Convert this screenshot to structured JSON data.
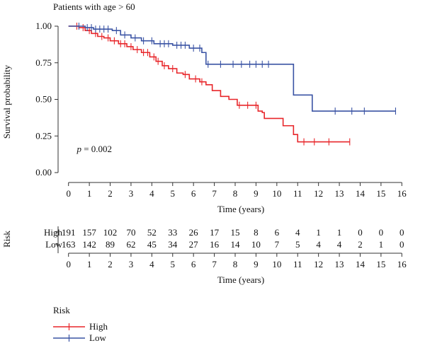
{
  "chart_data": {
    "type": "line",
    "subtype": "kaplan-meier",
    "title": "Patients with age > 60",
    "xlabel": "Time (years)",
    "ylabel": "Survival probability",
    "xlim": [
      -0.5,
      16.5
    ],
    "ylim": [
      0,
      1
    ],
    "x_ticks": [
      0,
      1,
      2,
      3,
      4,
      5,
      6,
      7,
      8,
      9,
      10,
      11,
      12,
      13,
      14,
      15,
      16
    ],
    "y_ticks": [
      "0.00",
      "0.25",
      "0.50",
      "0.75",
      "1.00"
    ],
    "grid": false,
    "annotation": {
      "p_symbol": "p",
      "p_value": " = 0.002",
      "x": 0.4,
      "y": 0.16
    },
    "series": [
      {
        "name": "High",
        "color": "#e8262a",
        "x": [
          0,
          0.5,
          0.8,
          1.1,
          1.4,
          1.7,
          2.0,
          2.4,
          2.8,
          3.1,
          3.5,
          3.9,
          4.2,
          4.5,
          4.8,
          5.2,
          5.5,
          5.8,
          6.3,
          6.6,
          6.9,
          7.3,
          7.7,
          8.1,
          9.1,
          9.3,
          9.4,
          10.3,
          10.8,
          11.0,
          13.5
        ],
        "y": [
          1.0,
          0.99,
          0.97,
          0.95,
          0.93,
          0.92,
          0.9,
          0.88,
          0.86,
          0.84,
          0.82,
          0.79,
          0.76,
          0.73,
          0.71,
          0.68,
          0.67,
          0.64,
          0.62,
          0.6,
          0.56,
          0.52,
          0.5,
          0.46,
          0.42,
          0.41,
          0.37,
          0.32,
          0.26,
          0.21,
          0.21
        ],
        "censor_x": [
          0.4,
          0.7,
          1.0,
          1.3,
          1.6,
          1.9,
          2.2,
          2.5,
          2.7,
          3.0,
          3.3,
          3.6,
          3.8,
          4.1,
          4.3,
          4.6,
          5.0,
          5.6,
          6.1,
          6.4,
          8.2,
          8.6,
          9.0,
          11.3,
          11.8,
          12.5,
          13.5
        ],
        "at_risk": [
          191,
          157,
          102,
          70,
          52,
          33,
          26,
          17,
          15,
          8,
          6,
          4,
          1,
          1,
          0,
          0,
          0
        ]
      },
      {
        "name": "Low",
        "color": "#3a53a4",
        "x": [
          0,
          0.8,
          1.2,
          2.1,
          2.5,
          3.0,
          3.5,
          4.1,
          5.0,
          5.8,
          6.4,
          6.6,
          10.7,
          10.8,
          11.7,
          15.7
        ],
        "y": [
          1.0,
          0.99,
          0.98,
          0.97,
          0.94,
          0.92,
          0.9,
          0.88,
          0.87,
          0.85,
          0.82,
          0.74,
          0.74,
          0.53,
          0.42,
          0.42
        ],
        "censor_x": [
          0.5,
          0.9,
          1.1,
          1.3,
          1.5,
          1.7,
          1.9,
          2.3,
          2.7,
          3.2,
          3.6,
          4.0,
          4.4,
          4.6,
          4.8,
          5.2,
          5.4,
          5.6,
          6.0,
          6.3,
          6.7,
          7.3,
          7.9,
          8.3,
          8.7,
          9.0,
          9.3,
          9.6,
          12.8,
          13.6,
          14.2,
          15.7
        ],
        "at_risk": [
          163,
          142,
          89,
          62,
          45,
          34,
          27,
          16,
          14,
          10,
          7,
          5,
          4,
          4,
          2,
          1,
          0
        ]
      }
    ],
    "risk_table": {
      "title": "Risk",
      "rows": [
        "High",
        "Low"
      ],
      "xlabel": "Time (years)"
    },
    "legend": {
      "title": "Risk",
      "placement": "bottom-left"
    }
  }
}
